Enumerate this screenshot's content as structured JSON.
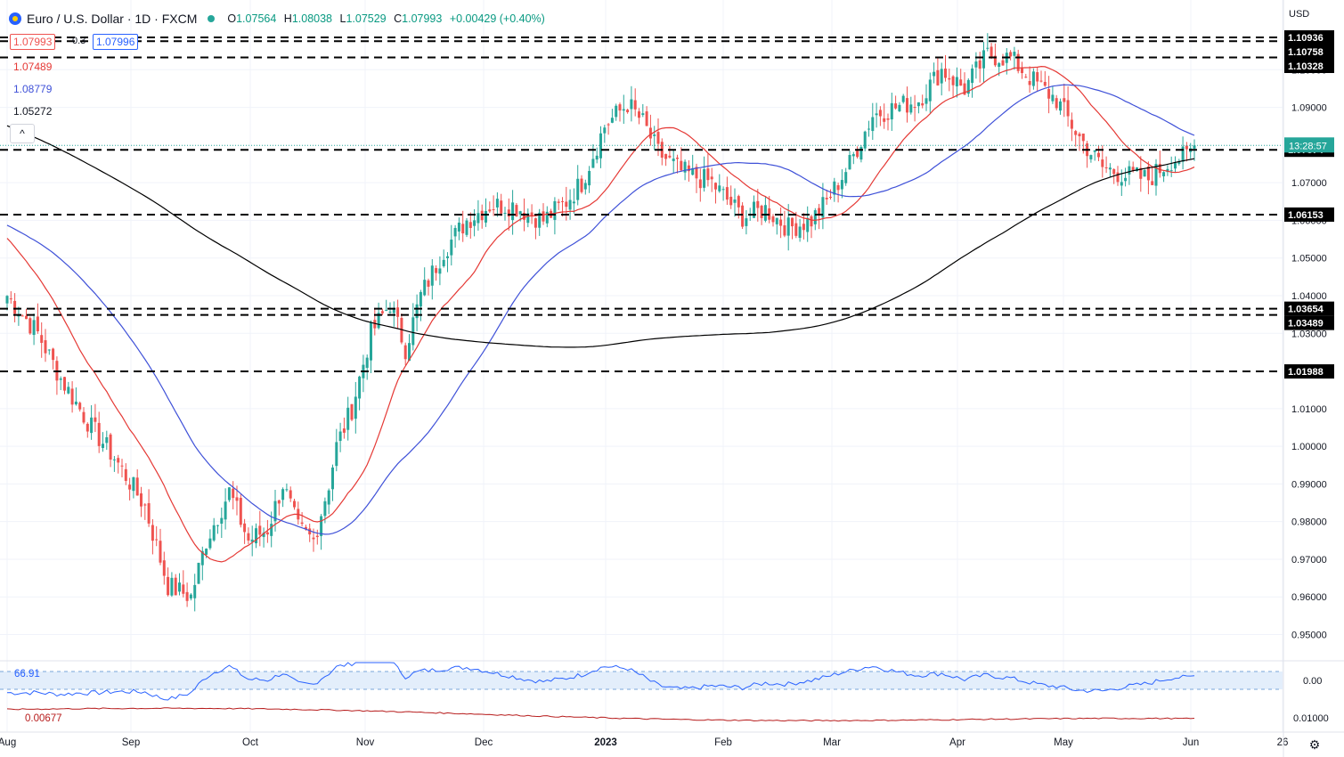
{
  "header": {
    "title": "Euro / U.S. Dollar · 1D · FXCM",
    "open_label": "O",
    "open": "1.07564",
    "high_label": "H",
    "high": "1.08038",
    "low_label": "L",
    "low": "1.07529",
    "close_label": "C",
    "close": "1.07993",
    "change": "+0.00429 (+0.40%)"
  },
  "legend": {
    "bid": "1.07993",
    "spread": "0.3",
    "ask": "1.07996",
    "ma20": "1.07489",
    "ma50": "1.08779",
    "ma200": "1.05272"
  },
  "currency_label": "USD",
  "countdown": "13:28:57",
  "collapse_icon": "^",
  "oscillator": {
    "rsi_label": "66.91",
    "atr_label": "0.00677"
  },
  "colors": {
    "up": "#26a69a",
    "down": "#ef5350",
    "ma20": "#e53935",
    "ma50": "#3f51d8",
    "ma200": "#000000",
    "grid": "#f0f3fa",
    "text": "#131722"
  },
  "chart_data": {
    "type": "candlestick",
    "title": "Euro / U.S. Dollar · 1D · FXCM",
    "yaxis": {
      "ticks": [
        "1.10000",
        "1.09000",
        "1.07000",
        "1.06000",
        "1.05000",
        "1.04000",
        "1.03000",
        "1.01000",
        "1.00000",
        "0.99000",
        "0.98000",
        "0.97000",
        "0.96000",
        "0.95000"
      ],
      "ylim": [
        0.9435,
        1.0996
      ]
    },
    "xaxis": {
      "ticks": [
        "Aug",
        "Sep",
        "Oct",
        "Nov",
        "Dec",
        "2023",
        "Feb",
        "Mar",
        "Apr",
        "May",
        "Jun",
        "26"
      ]
    },
    "horizontal_levels": [
      "1.10936",
      "1.10758",
      "1.10328",
      "1.07874",
      "1.06153",
      "1.03654",
      "1.03489",
      "1.01988"
    ],
    "series": [
      {
        "name": "",
        "anchors": [
          [
            0,
            1.04
          ],
          [
            8,
            1.03
          ],
          [
            14,
            1.018
          ],
          [
            22,
            1.005
          ],
          [
            28,
            0.997
          ],
          [
            36,
            0.984
          ],
          [
            42,
            0.963
          ],
          [
            48,
            0.96
          ],
          [
            52,
            0.975
          ],
          [
            58,
            0.988
          ],
          [
            63,
            0.975
          ],
          [
            68,
            0.978
          ],
          [
            72,
            0.99
          ],
          [
            76,
            0.978
          ],
          [
            80,
            0.975
          ],
          [
            84,
            0.99
          ],
          [
            86,
            1.0
          ],
          [
            90,
            1.01
          ],
          [
            95,
            1.03
          ],
          [
            100,
            1.038
          ],
          [
            104,
            1.026
          ],
          [
            108,
            1.04
          ],
          [
            114,
            1.052
          ],
          [
            120,
            1.06
          ],
          [
            126,
            1.064
          ],
          [
            132,
            1.064
          ],
          [
            140,
            1.06
          ],
          [
            146,
            1.065
          ],
          [
            150,
            1.07
          ],
          [
            156,
            1.085
          ],
          [
            162,
            1.091
          ],
          [
            166,
            1.086
          ],
          [
            170,
            1.078
          ],
          [
            176,
            1.073
          ],
          [
            184,
            1.07
          ],
          [
            192,
            1.061
          ],
          [
            198,
            1.063
          ],
          [
            204,
            1.058
          ],
          [
            210,
            1.06
          ],
          [
            214,
            1.065
          ],
          [
            220,
            1.075
          ],
          [
            226,
            1.088
          ],
          [
            232,
            1.09
          ],
          [
            238,
            1.092
          ],
          [
            244,
            1.1
          ],
          [
            250,
            1.095
          ],
          [
            256,
            1.104
          ],
          [
            262,
            1.103
          ],
          [
            268,
            1.097
          ],
          [
            274,
            1.092
          ],
          [
            280,
            1.082
          ],
          [
            286,
            1.074
          ],
          [
            292,
            1.072
          ],
          [
            298,
            1.071
          ],
          [
            304,
            1.076
          ],
          [
            308,
            1.077
          ],
          [
            310,
            1.0799
          ]
        ]
      },
      {
        "name": "",
        "values": [
          1.0749
        ]
      },
      {
        "name": "",
        "values": [
          1.0878
        ]
      },
      {
        "name": "",
        "values": [
          1.0527
        ]
      }
    ]
  }
}
